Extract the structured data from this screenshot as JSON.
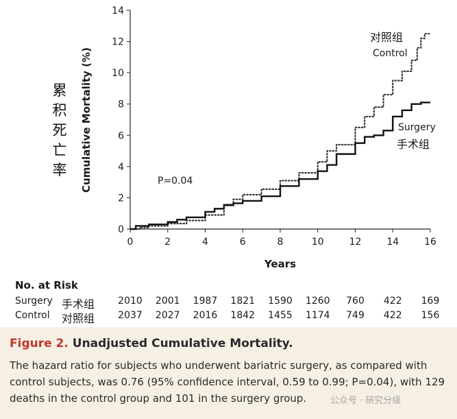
{
  "chart_data": {
    "type": "line",
    "xlabel": "Years",
    "ylabel": "Cumulative Mortality (%)",
    "ylabel_cn": "累积死亡率",
    "xlim": [
      0,
      16
    ],
    "ylim": [
      0,
      14
    ],
    "xticks": [
      0,
      2,
      4,
      6,
      8,
      10,
      12,
      14,
      16
    ],
    "yticks": [
      0,
      2,
      4,
      6,
      8,
      10,
      12,
      14
    ],
    "grid": false,
    "annotation": "P=0.04",
    "series": [
      {
        "name": "Control",
        "name_cn": "对照组",
        "style": "dotted",
        "color": "#333333",
        "x": [
          0,
          0.5,
          1,
          2,
          3,
          4,
          5,
          5.5,
          6,
          7,
          8,
          9,
          10,
          10.5,
          11,
          12,
          12.5,
          13,
          13.5,
          14,
          14.5,
          15,
          15.3,
          15.5,
          15.7,
          16
        ],
        "y": [
          0,
          0.1,
          0.2,
          0.35,
          0.55,
          0.9,
          1.5,
          1.9,
          2.2,
          2.55,
          3.1,
          3.6,
          4.3,
          5.0,
          5.4,
          6.5,
          7.2,
          7.8,
          8.6,
          9.5,
          10.1,
          10.8,
          11.6,
          12.2,
          12.5,
          12.5
        ]
      },
      {
        "name": "Surgery",
        "name_cn": "手术组",
        "style": "solid",
        "color": "#111111",
        "x": [
          0,
          0.3,
          1,
          2,
          2.5,
          3,
          3.5,
          4,
          4.5,
          5,
          5.5,
          6,
          7,
          8,
          9,
          10,
          10.5,
          11,
          12,
          12.5,
          13,
          13.5,
          14,
          14.5,
          15,
          15.5,
          16
        ],
        "y": [
          0,
          0.2,
          0.3,
          0.45,
          0.6,
          0.75,
          0.75,
          1.1,
          1.3,
          1.55,
          1.65,
          1.8,
          2.1,
          2.75,
          3.2,
          3.7,
          4.1,
          4.8,
          5.5,
          5.9,
          6.0,
          6.3,
          7.2,
          7.6,
          8.0,
          8.1,
          8.1
        ]
      }
    ]
  },
  "risk_table": {
    "title": "No. at Risk",
    "years": [
      0,
      2,
      4,
      6,
      8,
      10,
      12,
      14,
      16
    ],
    "rows": [
      {
        "label": "Surgery",
        "label_cn": "手术组",
        "values": [
          "2010",
          "2001",
          "1987",
          "1821",
          "1590",
          "1260",
          "760",
          "422",
          "169"
        ]
      },
      {
        "label": "Control",
        "label_cn": "对照组",
        "values": [
          "2037",
          "2027",
          "2016",
          "1842",
          "1455",
          "1174",
          "749",
          "422",
          "156"
        ]
      }
    ]
  },
  "caption": {
    "figure_label": "Figure 2.",
    "title": "Unadjusted Cumulative Mortality.",
    "text": "The hazard ratio for subjects who underwent bariatric surgery, as compared with control subjects, was 0.76 (95% confidence interval, 0.59 to 0.99; P=0.04), with 129 deaths in the control group and 101 in the surgery group.",
    "watermark": "公众号 · 研究分级"
  }
}
